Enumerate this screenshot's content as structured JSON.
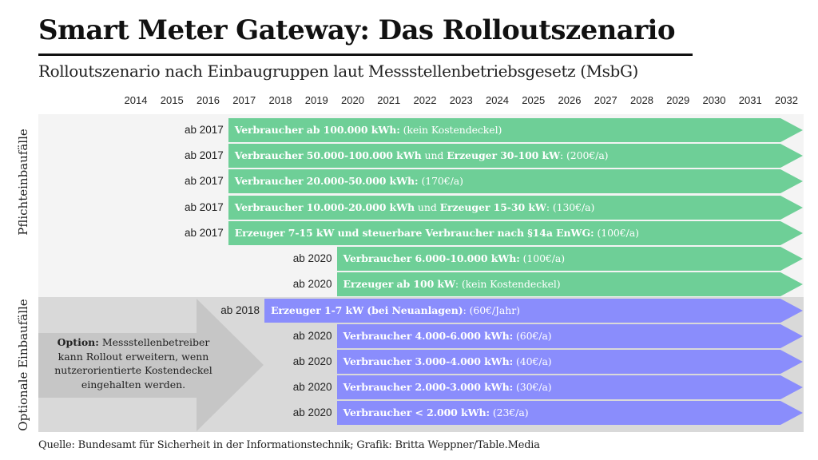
{
  "header": {
    "title": "Smart Meter Gateway: Das Rolloutszenario",
    "subtitle": "Rolloutszenario nach Einbaugruppen laut Messstellenbetriebsgesetz (MsbG)"
  },
  "sections": {
    "mandatory_label": "Pflichteinbaufälle",
    "optional_label": "Optionale Einbaufälle"
  },
  "option_note": {
    "bold": "Option:",
    "text": " Messstellenbetreiber kann Rollout erweitern, wenn nutzerorientierte Kostendeckel eingehalten werden."
  },
  "footer": {
    "source": "Quelle: Bundesamt für Sicherheit in der Informationstechnik; Grafik: Britta Weppner/Table.Media"
  },
  "colors": {
    "mandatory": "#6ecf97",
    "optional": "#8a8dfc",
    "mandatory_bg": "#f4f4f4",
    "optional_bg": "#d9d9d9",
    "option_arrow": "#c6c6c6"
  },
  "chart_data": {
    "type": "gantt",
    "title": "Smart Meter Gateway: Das Rolloutszenario",
    "subtitle": "Rolloutszenario nach Einbaugruppen laut Messstellenbetriebsgesetz (MsbG)",
    "x": [
      "2014",
      "2015",
      "2016",
      "2017",
      "2018",
      "2019",
      "2020",
      "2021",
      "2022",
      "2023",
      "2024",
      "2025",
      "2026",
      "2027",
      "2028",
      "2029",
      "2030",
      "2031",
      "2032"
    ],
    "xlim": [
      2014,
      2032
    ],
    "groups": [
      "Pflichteinbaufälle",
      "Optionale Einbaufälle"
    ],
    "rows": [
      {
        "group": "Pflichteinbaufälle",
        "start": 2017,
        "start_label": "ab 2017",
        "bold": "Verbraucher ab 100.000 kWh:",
        "rest": " (kein Kostendeckel)",
        "cap": "kein Kostendeckel"
      },
      {
        "group": "Pflichteinbaufälle",
        "start": 2017,
        "start_label": "ab 2017",
        "bold": "Verbraucher 50.000-100.000 kWh",
        "mid": " und ",
        "bold2": "Erzeuger 30-100 kW",
        "rest": ": (200€/a)",
        "cap": "200€/a"
      },
      {
        "group": "Pflichteinbaufälle",
        "start": 2017,
        "start_label": "ab 2017",
        "bold": "Verbraucher 20.000-50.000 kWh:",
        "rest": " (170€/a)",
        "cap": "170€/a"
      },
      {
        "group": "Pflichteinbaufälle",
        "start": 2017,
        "start_label": "ab 2017",
        "bold": "Verbraucher 10.000-20.000 kWh",
        "mid": " und ",
        "bold2": "Erzeuger 15-30 kW",
        "rest": ": (130€/a)",
        "cap": "130€/a"
      },
      {
        "group": "Pflichteinbaufälle",
        "start": 2017,
        "start_label": "ab 2017",
        "bold": "Erzeuger 7-15 kW und steuerbare Verbraucher nach §14a EnWG:",
        "rest": " (100€/a)",
        "cap": "100€/a"
      },
      {
        "group": "Pflichteinbaufälle",
        "start": 2020,
        "start_label": "ab 2020",
        "bold": "Verbraucher 6.000-10.000 kWh:",
        "rest": " (100€/a)",
        "cap": "100€/a"
      },
      {
        "group": "Pflichteinbaufälle",
        "start": 2020,
        "start_label": "ab 2020",
        "bold": "Erzeuger ab 100 kW",
        "rest": ": (kein Kostendeckel)",
        "cap": "kein Kostendeckel"
      },
      {
        "group": "Optionale Einbaufälle",
        "start": 2018,
        "start_label": "ab 2018",
        "bold": "Erzeuger 1-7 kW (bei Neuanlagen)",
        "rest": ": (60€/Jahr)",
        "cap": "60€/Jahr"
      },
      {
        "group": "Optionale Einbaufälle",
        "start": 2020,
        "start_label": "ab 2020",
        "bold": "Verbraucher 4.000-6.000 kWh:",
        "rest": " (60€/a)",
        "cap": "60€/a"
      },
      {
        "group": "Optionale Einbaufälle",
        "start": 2020,
        "start_label": "ab 2020",
        "bold": "Verbraucher 3.000-4.000 kWh:",
        "rest": " (40€/a)",
        "cap": "40€/a"
      },
      {
        "group": "Optionale Einbaufälle",
        "start": 2020,
        "start_label": "ab 2020",
        "bold": "Verbraucher 2.000-3.000 kWh:",
        "rest": " (30€/a)",
        "cap": "30€/a"
      },
      {
        "group": "Optionale Einbaufälle",
        "start": 2020,
        "start_label": "ab 2020",
        "bold": "Verbraucher < 2.000 kWh:",
        "rest": " (23€/a)",
        "cap": "23€/a"
      }
    ],
    "annotation": "Option: Messstellenbetreiber kann Rollout erweitern, wenn nutzerorientierte Kostendeckel eingehalten werden.",
    "source": "Quelle: Bundesamt für Sicherheit in der Informationstechnik; Grafik: Britta Weppner/Table.Media"
  }
}
